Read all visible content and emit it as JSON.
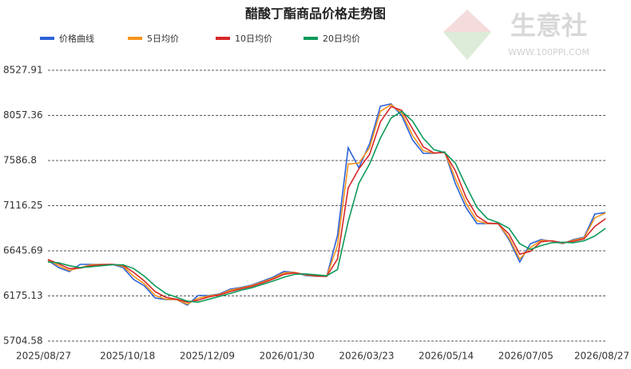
{
  "chart_data": {
    "type": "line",
    "title": "醋酸丁酯商品价格走势图",
    "watermark": {
      "name": "生意社",
      "url": "WWW.100PPI.COM"
    },
    "x": [
      "2025/08/27",
      "2025/09/03",
      "2025/09/10",
      "2025/09/17",
      "2025/09/24",
      "2025/10/01",
      "2025/10/08",
      "2025/10/15",
      "2025/10/22",
      "2025/10/29",
      "2025/11/05",
      "2025/11/12",
      "2025/11/19",
      "2025/11/26",
      "2025/12/03",
      "2025/12/10",
      "2025/12/17",
      "2025/12/24",
      "2025/12/31",
      "2026/01/07",
      "2026/01/14",
      "2026/01/21",
      "2026/01/28",
      "2026/02/04",
      "2026/02/11",
      "2026/02/18",
      "2026/02/25",
      "2026/03/04",
      "2026/03/11",
      "2026/03/18",
      "2026/03/25",
      "2026/04/01",
      "2026/04/08",
      "2026/04/15",
      "2026/04/22",
      "2026/04/29",
      "2026/05/06",
      "2026/05/13",
      "2026/05/20",
      "2026/05/27",
      "2026/06/03",
      "2026/06/10",
      "2026/06/17",
      "2026/06/24",
      "2026/07/01",
      "2026/07/08",
      "2026/07/15",
      "2026/07/22",
      "2026/07/29",
      "2026/08/05",
      "2026/08/12",
      "2026/08/19",
      "2026/08/26"
    ],
    "series": [
      {
        "name": "价格曲线",
        "color": "#2c62d8",
        "values": [
          6546,
          6471,
          6429,
          6504,
          6504,
          6504,
          6504,
          6471,
          6346,
          6279,
          6154,
          6137,
          6137,
          6079,
          6179,
          6179,
          6196,
          6246,
          6263,
          6288,
          6329,
          6371,
          6429,
          6421,
          6388,
          6379,
          6379,
          6804,
          7720,
          7512,
          7762,
          8153,
          8178,
          8053,
          7803,
          7662,
          7662,
          7678,
          7345,
          7095,
          6929,
          6929,
          6929,
          6762,
          6529,
          6720,
          6762,
          6746,
          6720,
          6762,
          6787,
          7029,
          7045
        ]
      },
      {
        "name": "5日均价",
        "color": "#f7941d",
        "values": [
          6550,
          6490,
          6440,
          6470,
          6500,
          6504,
          6504,
          6485,
          6380,
          6300,
          6180,
          6140,
          6137,
          6090,
          6150,
          6175,
          6190,
          6235,
          6258,
          6283,
          6320,
          6360,
          6415,
          6420,
          6395,
          6382,
          6379,
          6700,
          7550,
          7560,
          7720,
          8100,
          8170,
          8080,
          7850,
          7690,
          7662,
          7675,
          7400,
          7140,
          6960,
          6929,
          6929,
          6780,
          6560,
          6680,
          6755,
          6748,
          6725,
          6755,
          6780,
          6990,
          7040
        ]
      },
      {
        "name": "10日均价",
        "color": "#d62728",
        "values": [
          6555,
          6510,
          6460,
          6465,
          6490,
          6500,
          6504,
          6495,
          6420,
          6330,
          6220,
          6160,
          6140,
          6110,
          6130,
          6165,
          6185,
          6220,
          6250,
          6275,
          6310,
          6350,
          6400,
          6415,
          6400,
          6385,
          6380,
          6560,
          7300,
          7500,
          7650,
          7990,
          8150,
          8110,
          7920,
          7730,
          7665,
          7670,
          7480,
          7200,
          7010,
          6935,
          6929,
          6820,
          6610,
          6640,
          6740,
          6750,
          6730,
          6745,
          6770,
          6900,
          6980
        ]
      },
      {
        "name": "20日均价",
        "color": "#0c9a5a",
        "values": [
          6530,
          6520,
          6490,
          6470,
          6480,
          6490,
          6500,
          6500,
          6460,
          6380,
          6280,
          6200,
          6160,
          6120,
          6110,
          6140,
          6170,
          6200,
          6235,
          6260,
          6295,
          6330,
          6370,
          6400,
          6405,
          6395,
          6385,
          6450,
          6950,
          7350,
          7550,
          7820,
          8030,
          8100,
          8000,
          7820,
          7700,
          7670,
          7560,
          7320,
          7100,
          6980,
          6940,
          6880,
          6720,
          6660,
          6700,
          6730,
          6735,
          6730,
          6750,
          6800,
          6880
        ]
      }
    ],
    "xlim": [
      "2025/08/27",
      "2026/08/27"
    ],
    "xticks": [
      "2025/08/27",
      "2025/10/18",
      "2025/12/09",
      "2026/01/30",
      "2026/03/23",
      "2026/05/14",
      "2026/07/05",
      "2026/08/27"
    ],
    "ylim": [
      5704.58,
      8527.91
    ],
    "yticks": [
      5704.58,
      6175.13,
      6645.69,
      7116.25,
      7586.8,
      8057.36,
      8527.91
    ],
    "grid": true
  }
}
